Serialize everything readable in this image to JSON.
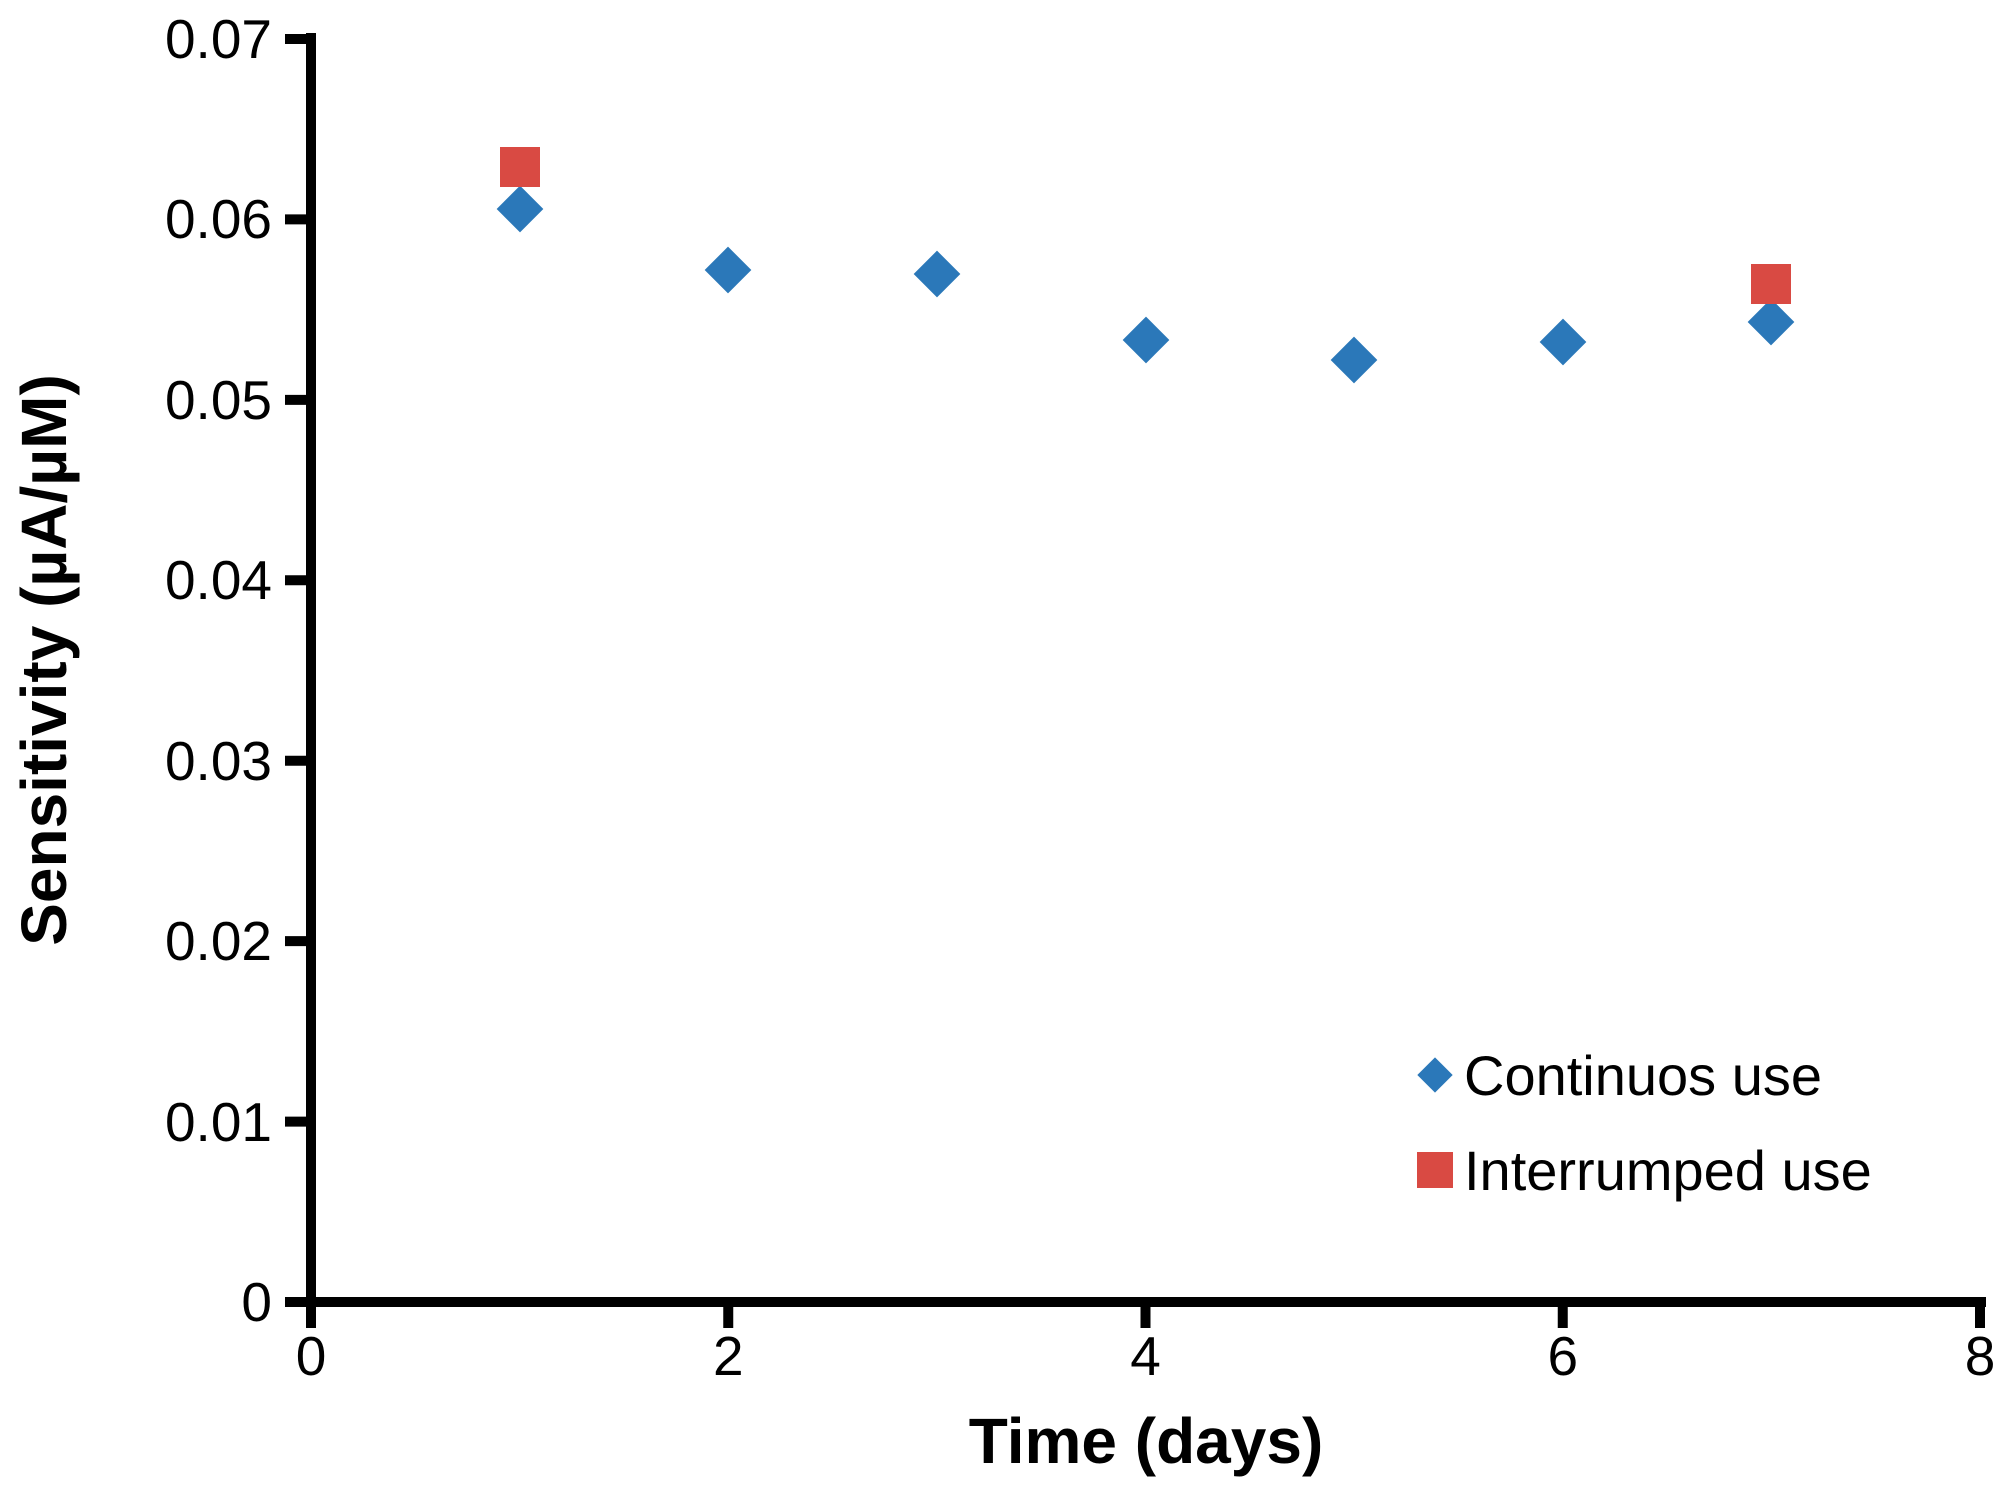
{
  "chart_data": {
    "type": "scatter",
    "xlabel": "Time (days)",
    "ylabel": "Sensitivity (µA/µM)",
    "xlim": [
      0,
      8
    ],
    "ylim": [
      0,
      0.07
    ],
    "x_ticks": [
      0,
      2,
      4,
      6,
      8
    ],
    "x_tick_labels": [
      "0",
      "2",
      "4",
      "6",
      "8"
    ],
    "y_ticks": [
      0,
      0.01,
      0.02,
      0.03,
      0.04,
      0.05,
      0.06,
      0.07
    ],
    "y_tick_labels": [
      "0",
      "0.01",
      "0.02",
      "0.03",
      "0.04",
      "0.05",
      "0.06",
      "0.07"
    ],
    "grid": false,
    "legend_position": "inside-lower-right",
    "axis_color": "#000000",
    "series": [
      {
        "name": "Continuos use",
        "marker": "diamond",
        "color": "#2B78B9",
        "points": [
          [
            1,
            0.0606
          ],
          [
            2,
            0.0572
          ],
          [
            3,
            0.057
          ],
          [
            4,
            0.0533
          ],
          [
            5,
            0.0522
          ],
          [
            6,
            0.0532
          ],
          [
            7,
            0.0543
          ]
        ]
      },
      {
        "name": "Interrumped use",
        "marker": "square",
        "color": "#D94A43",
        "points": [
          [
            1,
            0.0629
          ],
          [
            7,
            0.0564
          ]
        ]
      }
    ]
  }
}
